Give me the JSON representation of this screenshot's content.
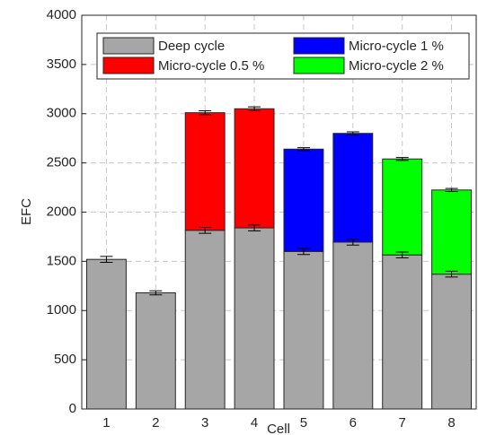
{
  "chart_data": {
    "type": "stacked-bar",
    "xlabel": "Cell",
    "ylabel": "EFC",
    "categories": [
      "1",
      "2",
      "3",
      "4",
      "5",
      "6",
      "7",
      "8"
    ],
    "series": [
      {
        "name": "Deep cycle",
        "color": "#a6a6a6",
        "values": [
          1520,
          1180,
          1815,
          1840,
          1600,
          1695,
          1565,
          1370
        ],
        "errors": [
          30,
          20,
          30,
          30,
          30,
          30,
          30,
          30
        ]
      },
      {
        "name": "Micro-cycle 0.5 %",
        "color": "#ff0000",
        "values": [
          null,
          null,
          1195,
          1210,
          null,
          null,
          null,
          null
        ],
        "errors": [
          null,
          null,
          20,
          20,
          null,
          null,
          null,
          null
        ]
      },
      {
        "name": "Micro-cycle 1 %",
        "color": "#0000ff",
        "values": [
          null,
          null,
          null,
          null,
          1040,
          1105,
          null,
          null
        ],
        "errors": [
          null,
          null,
          null,
          null,
          15,
          15,
          null,
          null
        ]
      },
      {
        "name": "Micro-cycle 2 %",
        "color": "#00ff00",
        "values": [
          null,
          null,
          null,
          null,
          null,
          null,
          975,
          855
        ],
        "errors": [
          null,
          null,
          null,
          null,
          null,
          null,
          15,
          15
        ]
      }
    ],
    "ylim": [
      0,
      4000
    ],
    "yticks": [
      0,
      500,
      1000,
      1500,
      2000,
      2500,
      3000,
      3500,
      4000
    ],
    "grid": true,
    "legend": "top-left"
  }
}
